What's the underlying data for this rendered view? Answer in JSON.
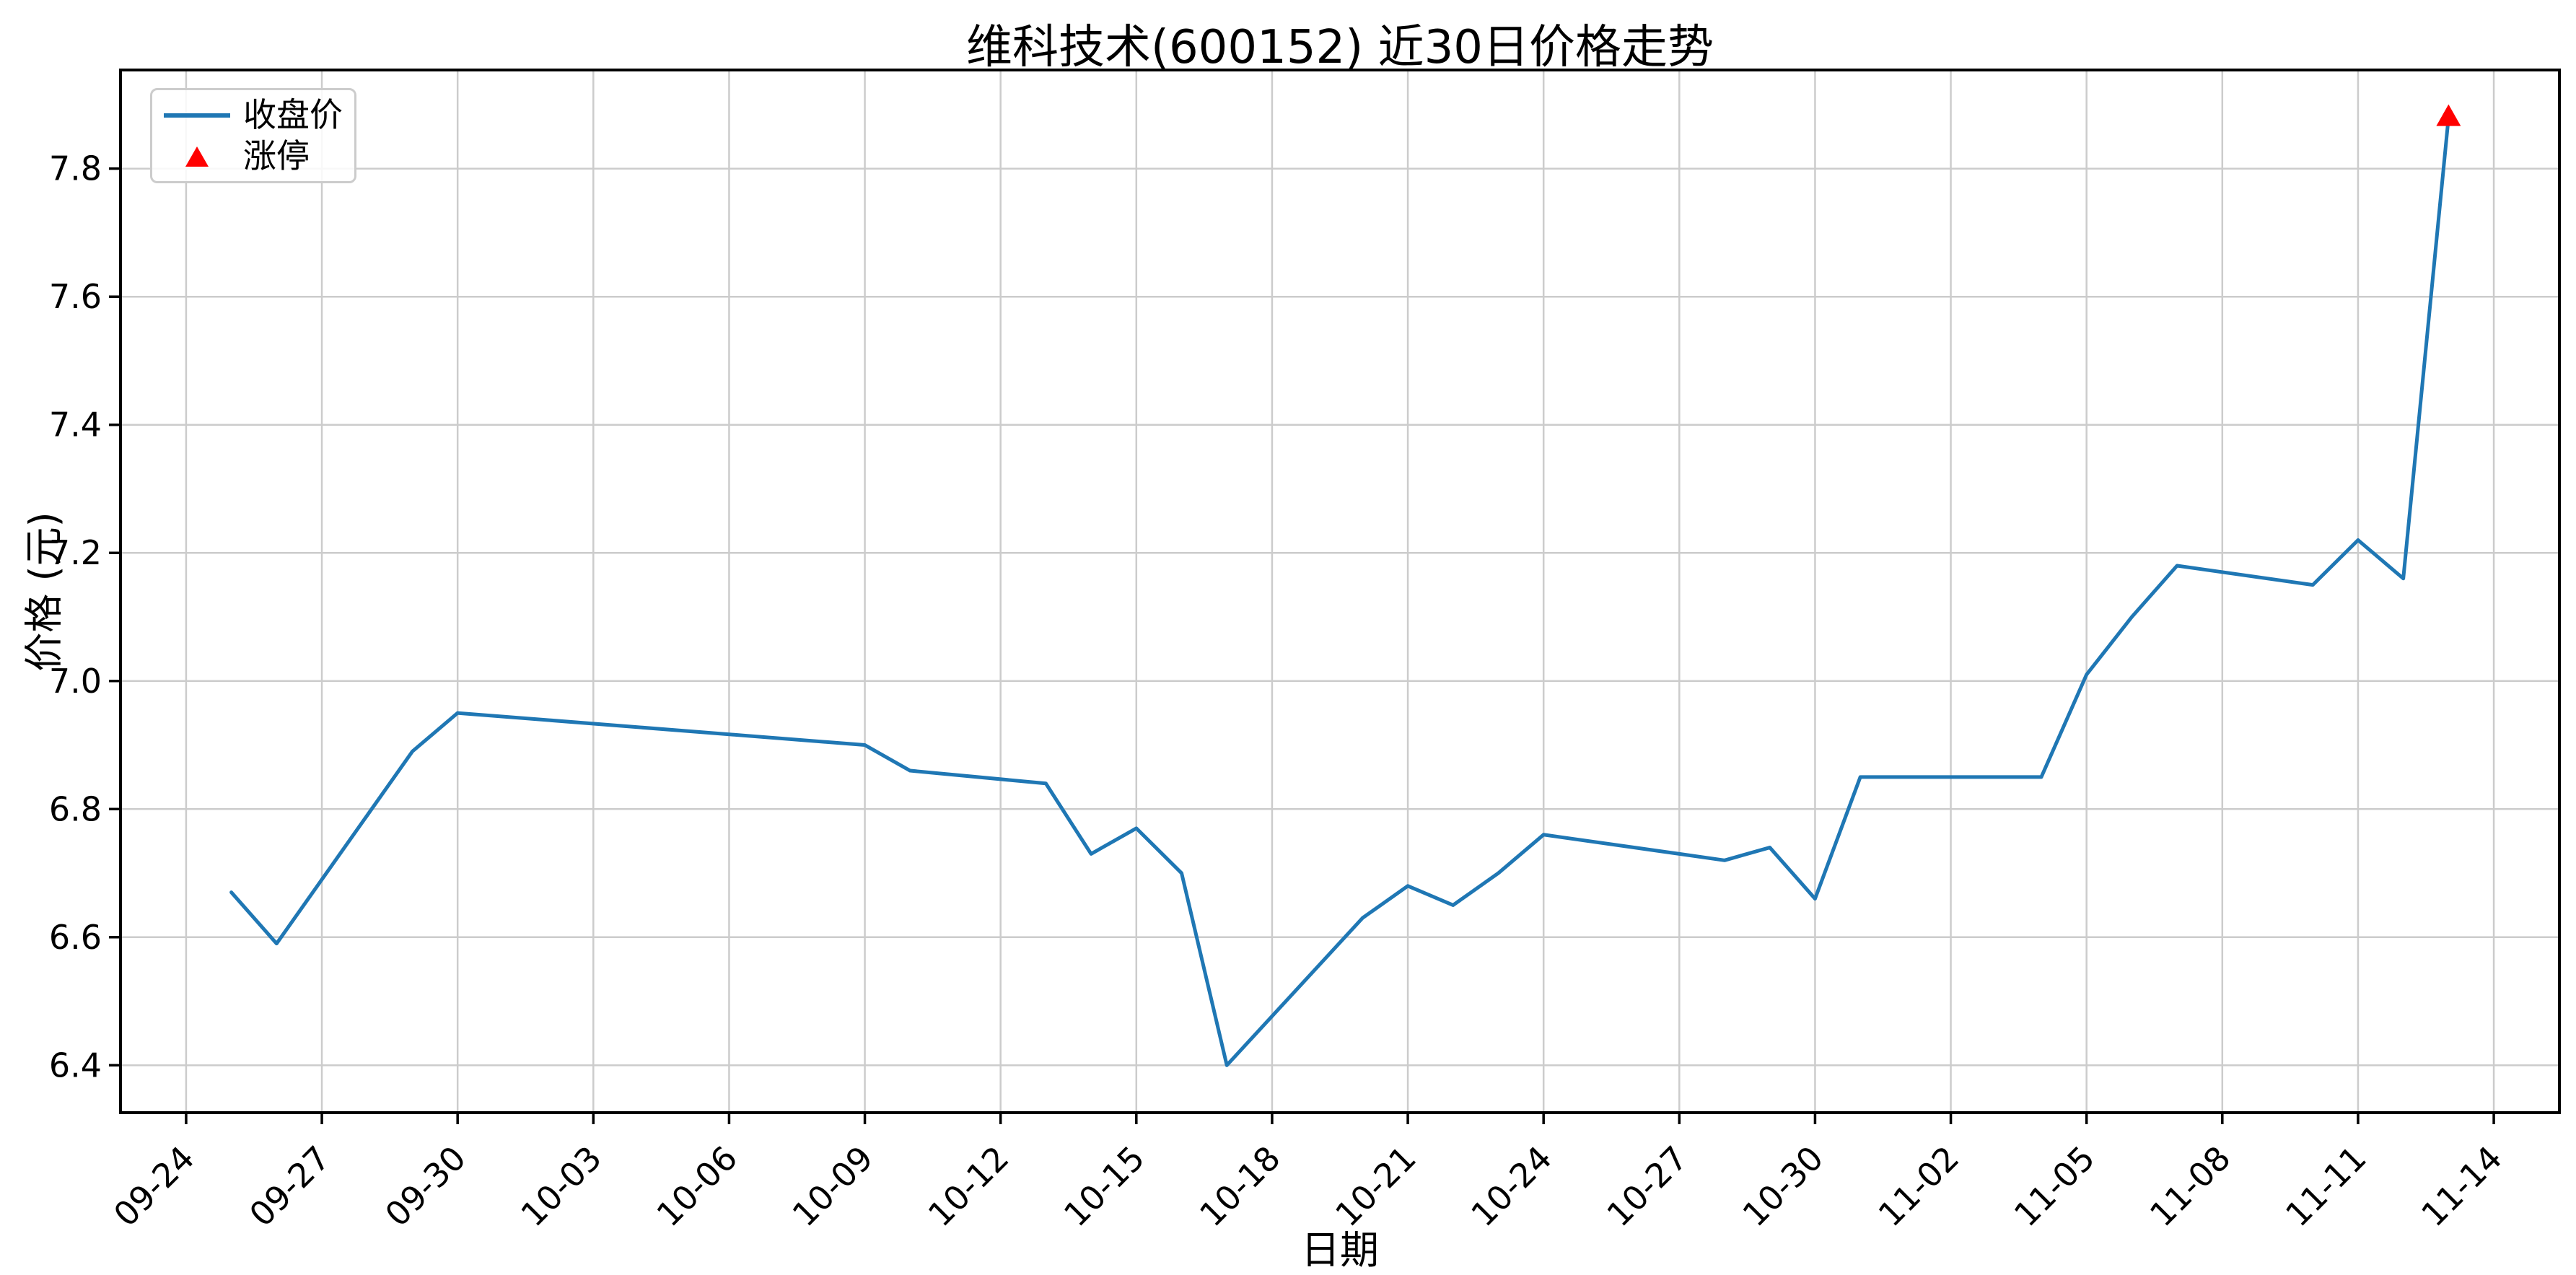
{
  "chart_data": {
    "type": "line",
    "title": "维科技术(600152) 近30日价格走势",
    "xlabel": "日期",
    "ylabel": "价格 (元)",
    "grid": true,
    "legend_position": "upper-left",
    "line_color": "#1f77b4",
    "marker_color": "#ff0000",
    "grid_color": "#cccccc",
    "axis_color": "#000000",
    "x_tick_labels": [
      "09-24",
      "09-27",
      "09-30",
      "10-03",
      "10-06",
      "10-09",
      "10-12",
      "10-15",
      "10-18",
      "10-21",
      "10-24",
      "10-27",
      "10-30",
      "11-02",
      "11-05",
      "11-08",
      "11-11",
      "11-14"
    ],
    "x_tick_day_offsets": [
      0,
      3,
      6,
      9,
      12,
      15,
      18,
      21,
      24,
      27,
      30,
      33,
      36,
      39,
      42,
      45,
      48,
      51
    ],
    "y_tick_labels": [
      "6.4",
      "6.6",
      "6.8",
      "7.0",
      "7.2",
      "7.4",
      "7.6",
      "7.8"
    ],
    "x_range_day_offsets": [
      -1.45,
      52.45
    ],
    "ylim": [
      6.326,
      7.954
    ],
    "series": [
      {
        "name": "收盘价",
        "dates": [
          "09-25",
          "09-26",
          "09-29",
          "09-30",
          "10-09",
          "10-10",
          "10-13",
          "10-14",
          "10-15",
          "10-16",
          "10-17",
          "10-20",
          "10-21",
          "10-22",
          "10-23",
          "10-24",
          "10-27",
          "10-28",
          "10-29",
          "10-30",
          "10-31",
          "11-03",
          "11-04",
          "11-05",
          "11-06",
          "11-07",
          "11-10",
          "11-11",
          "11-12",
          "11-13"
        ],
        "day_offsets": [
          1,
          2,
          5,
          6,
          15,
          16,
          19,
          20,
          21,
          22,
          23,
          26,
          27,
          28,
          29,
          30,
          33,
          34,
          35,
          36,
          37,
          40,
          41,
          42,
          43,
          44,
          47,
          48,
          49,
          50
        ],
        "values": [
          6.67,
          6.59,
          6.89,
          6.95,
          6.9,
          6.86,
          6.84,
          6.73,
          6.77,
          6.7,
          6.4,
          6.63,
          6.68,
          6.65,
          6.7,
          6.76,
          6.73,
          6.72,
          6.74,
          6.66,
          6.85,
          6.85,
          6.85,
          7.01,
          7.1,
          7.18,
          7.15,
          7.22,
          7.16,
          7.88
        ]
      }
    ],
    "annotations": [
      {
        "name": "涨停",
        "date": "11-13",
        "day_offset": 50,
        "value": 7.88,
        "marker": "triangle-up"
      }
    ],
    "legend": [
      {
        "label": "收盘价",
        "swatch": "line"
      },
      {
        "label": "涨停",
        "swatch": "triangle-up"
      }
    ]
  }
}
